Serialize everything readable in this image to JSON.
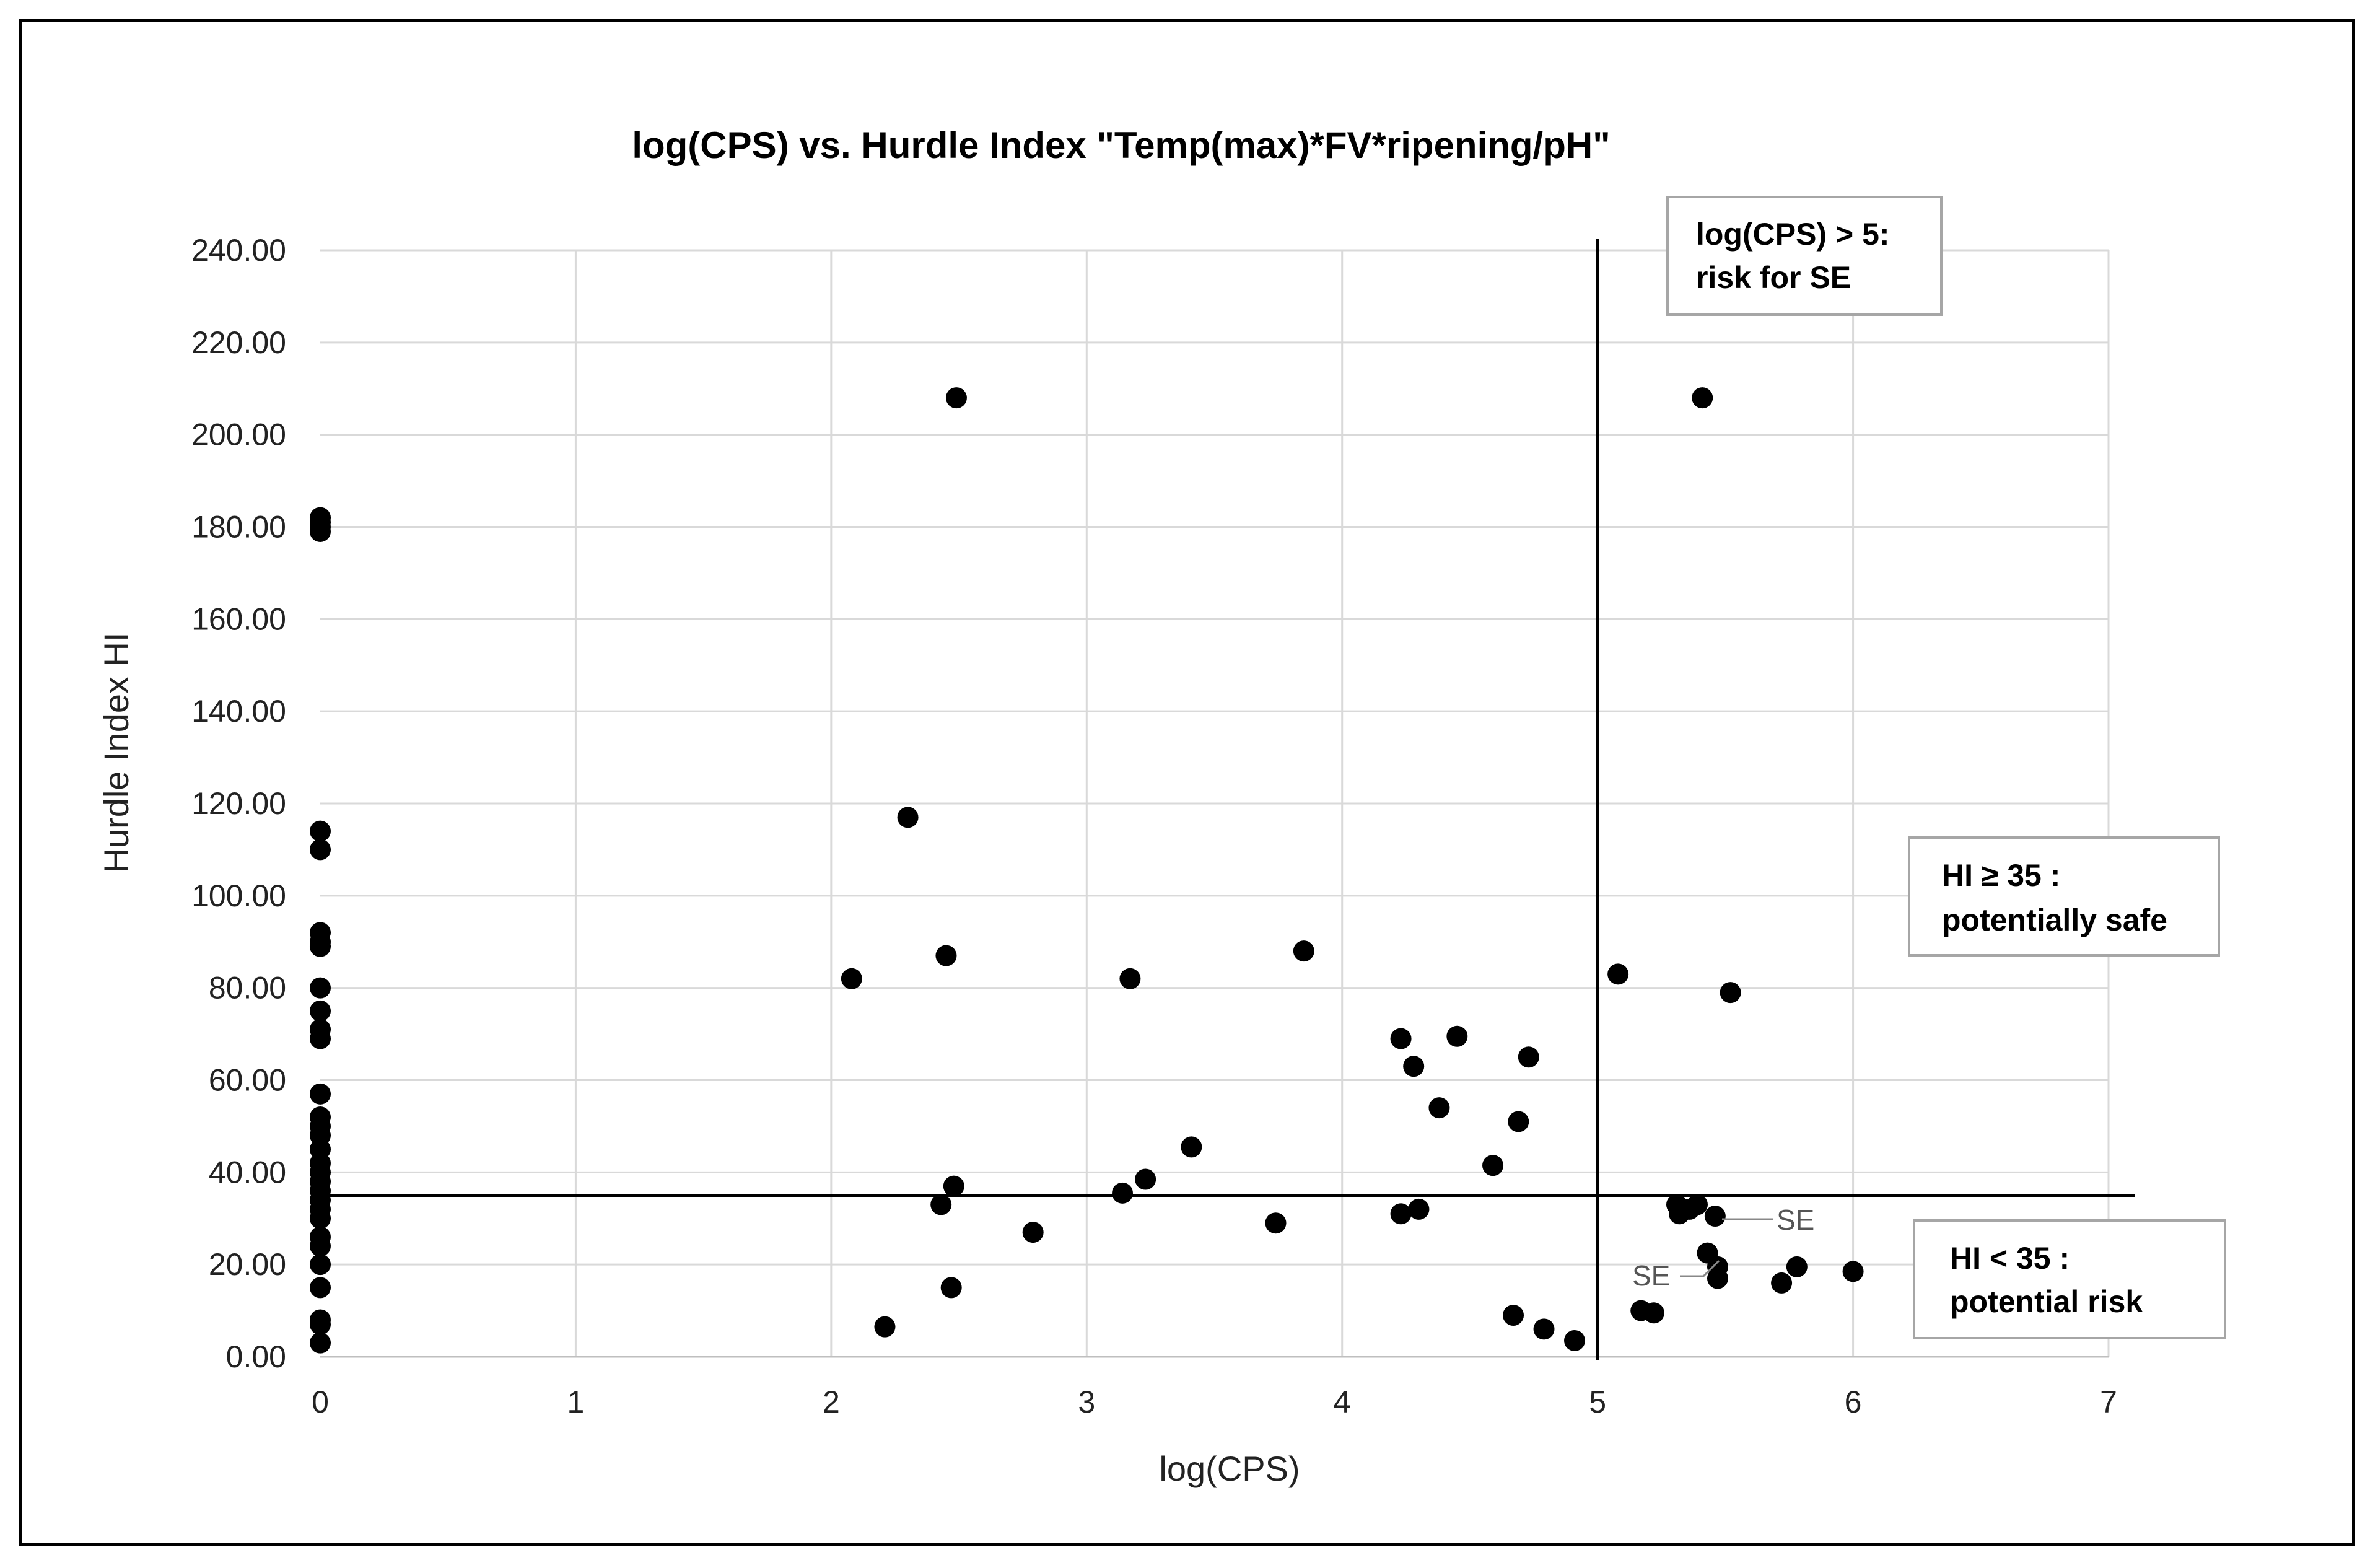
{
  "chart_data": {
    "type": "scatter",
    "title": "log(CPS) vs. Hurdle Index \"Temp(max)*FV*ripening/pH\"",
    "xlabel": "log(CPS)",
    "ylabel": "Hurdle Index HI",
    "xlim": [
      0,
      7
    ],
    "ylim": [
      0,
      240
    ],
    "x_ticks": [
      "0",
      "1",
      "2",
      "3",
      "4",
      "5",
      "6",
      "7"
    ],
    "y_ticks": [
      "0.00",
      "20.00",
      "40.00",
      "60.00",
      "80.00",
      "100.00",
      "120.00",
      "140.00",
      "160.00",
      "180.00",
      "200.00",
      "220.00",
      "240.00"
    ],
    "grid": true,
    "marker_color": "#000000",
    "reference_lines": [
      {
        "orientation": "vertical",
        "value": 5
      },
      {
        "orientation": "horizontal",
        "value": 35
      }
    ],
    "annotations": {
      "cps_box": {
        "line1": "log(CPS) > 5:",
        "line2": "risk for SE"
      },
      "safe_box": {
        "line1": "HI ≥ 35 :",
        "line2": "potentially safe"
      },
      "risk_box": {
        "line1": "HI < 35 :",
        "line2": "potential risk"
      },
      "se_upper": "SE",
      "se_lower": "SE"
    },
    "points": [
      {
        "x": 0,
        "y": 182
      },
      {
        "x": 0,
        "y": 181
      },
      {
        "x": 0,
        "y": 180
      },
      {
        "x": 0,
        "y": 179
      },
      {
        "x": 0,
        "y": 114
      },
      {
        "x": 0,
        "y": 110
      },
      {
        "x": 0,
        "y": 92
      },
      {
        "x": 0,
        "y": 90
      },
      {
        "x": 0,
        "y": 89
      },
      {
        "x": 0,
        "y": 80
      },
      {
        "x": 0,
        "y": 75
      },
      {
        "x": 0,
        "y": 71
      },
      {
        "x": 0,
        "y": 69
      },
      {
        "x": 0,
        "y": 57
      },
      {
        "x": 0,
        "y": 52
      },
      {
        "x": 0,
        "y": 50
      },
      {
        "x": 0,
        "y": 48
      },
      {
        "x": 0,
        "y": 45
      },
      {
        "x": 0,
        "y": 42
      },
      {
        "x": 0,
        "y": 40
      },
      {
        "x": 0,
        "y": 38
      },
      {
        "x": 0,
        "y": 36
      },
      {
        "x": 0,
        "y": 34
      },
      {
        "x": 0,
        "y": 32
      },
      {
        "x": 0,
        "y": 30
      },
      {
        "x": 0,
        "y": 26
      },
      {
        "x": 0,
        "y": 24
      },
      {
        "x": 0,
        "y": 20
      },
      {
        "x": 0,
        "y": 15
      },
      {
        "x": 0,
        "y": 8
      },
      {
        "x": 0,
        "y": 7
      },
      {
        "x": 0,
        "y": 3
      },
      {
        "x": 2.08,
        "y": 82
      },
      {
        "x": 2.21,
        "y": 6.5
      },
      {
        "x": 2.3,
        "y": 117
      },
      {
        "x": 2.43,
        "y": 33
      },
      {
        "x": 2.45,
        "y": 87
      },
      {
        "x": 2.47,
        "y": 15
      },
      {
        "x": 2.48,
        "y": 37
      },
      {
        "x": 2.49,
        "y": 208
      },
      {
        "x": 2.79,
        "y": 27
      },
      {
        "x": 3.14,
        "y": 35.5
      },
      {
        "x": 3.17,
        "y": 82
      },
      {
        "x": 3.23,
        "y": 38.5
      },
      {
        "x": 3.41,
        "y": 45.5
      },
      {
        "x": 3.74,
        "y": 29
      },
      {
        "x": 3.85,
        "y": 88
      },
      {
        "x": 4.23,
        "y": 31
      },
      {
        "x": 4.23,
        "y": 69
      },
      {
        "x": 4.28,
        "y": 63
      },
      {
        "x": 4.3,
        "y": 32
      },
      {
        "x": 4.38,
        "y": 54
      },
      {
        "x": 4.45,
        "y": 69.5
      },
      {
        "x": 4.59,
        "y": 41.5
      },
      {
        "x": 4.67,
        "y": 9
      },
      {
        "x": 4.69,
        "y": 51
      },
      {
        "x": 4.73,
        "y": 65
      },
      {
        "x": 4.79,
        "y": 6
      },
      {
        "x": 4.91,
        "y": 3.5
      },
      {
        "x": 5.08,
        "y": 83
      },
      {
        "x": 5.17,
        "y": 10
      },
      {
        "x": 5.22,
        "y": 9.5
      },
      {
        "x": 5.31,
        "y": 33
      },
      {
        "x": 5.32,
        "y": 31
      },
      {
        "x": 5.36,
        "y": 32
      },
      {
        "x": 5.39,
        "y": 33
      },
      {
        "x": 5.41,
        "y": 208
      },
      {
        "x": 5.43,
        "y": 22.5
      },
      {
        "x": 5.46,
        "y": 30.5
      },
      {
        "x": 5.47,
        "y": 19.5
      },
      {
        "x": 5.47,
        "y": 17
      },
      {
        "x": 5.52,
        "y": 79
      },
      {
        "x": 5.72,
        "y": 16
      },
      {
        "x": 5.78,
        "y": 19.5
      },
      {
        "x": 6.0,
        "y": 18.5
      }
    ]
  }
}
